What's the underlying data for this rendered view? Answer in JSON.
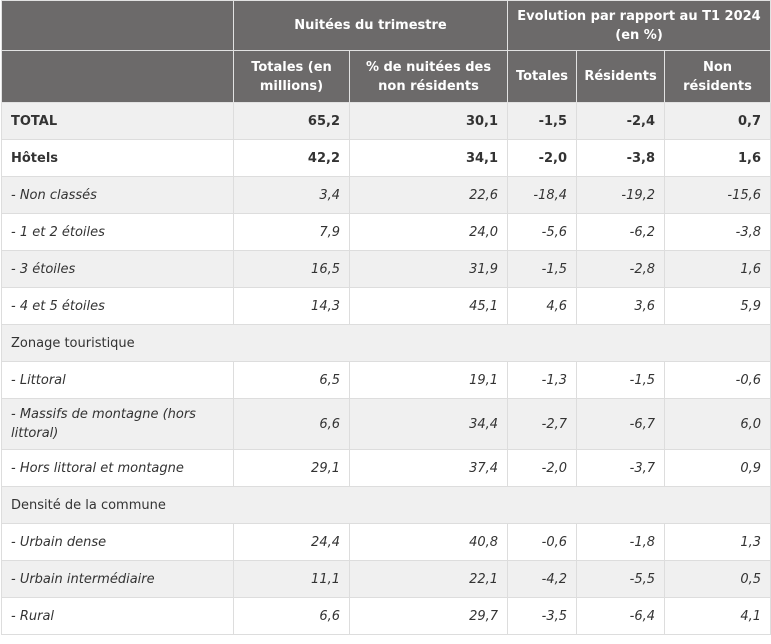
{
  "header": {
    "group1": "Nuitées du trimestre",
    "group2": "Evolution par rapport au T1 2024 (en %)",
    "cols": [
      "Totales (en millions)",
      "% de nuitées des non résidents",
      "Totales",
      "Résidents",
      "Non résidents"
    ]
  },
  "rows": [
    {
      "label": "TOTAL",
      "values": [
        "65,2",
        "30,1",
        "-1,5",
        "-2,4",
        "0,7"
      ],
      "style": "bold"
    },
    {
      "label": "Hôtels",
      "values": [
        "42,2",
        "34,1",
        "-2,0",
        "-3,8",
        "1,6"
      ],
      "style": "bold"
    },
    {
      "label": "- Non classés",
      "values": [
        "3,4",
        "22,6",
        "-18,4",
        "-19,2",
        "-15,6"
      ],
      "style": "italic"
    },
    {
      "label": "- 1 et 2 étoiles",
      "values": [
        "7,9",
        "24,0",
        "-5,6",
        "-6,2",
        "-3,8"
      ],
      "style": "italic"
    },
    {
      "label": "- 3 étoiles",
      "values": [
        "16,5",
        "31,9",
        "-1,5",
        "-2,8",
        "1,6"
      ],
      "style": "italic"
    },
    {
      "label": "- 4 et 5 étoiles",
      "values": [
        "14,3",
        "45,1",
        "4,6",
        "3,6",
        "5,9"
      ],
      "style": "italic"
    },
    {
      "label": "Zonage touristique",
      "style": "section"
    },
    {
      "label": "- Littoral",
      "values": [
        "6,5",
        "19,1",
        "-1,3",
        "-1,5",
        "-0,6"
      ],
      "style": "italic"
    },
    {
      "label": "- Massifs de montagne (hors littoral)",
      "values": [
        "6,6",
        "34,4",
        "-2,7",
        "-6,7",
        "6,0"
      ],
      "style": "italic"
    },
    {
      "label": "- Hors littoral et montagne",
      "values": [
        "29,1",
        "37,4",
        "-2,0",
        "-3,7",
        "0,9"
      ],
      "style": "italic"
    },
    {
      "label": "Densité de la commune",
      "style": "section"
    },
    {
      "label": "- Urbain dense",
      "values": [
        "24,4",
        "40,8",
        "-0,6",
        "-1,8",
        "1,3"
      ],
      "style": "italic"
    },
    {
      "label": "- Urbain intermédiaire",
      "values": [
        "11,1",
        "22,1",
        "-4,2",
        "-5,5",
        "0,5"
      ],
      "style": "italic"
    },
    {
      "label": "- Rural",
      "values": [
        "6,6",
        "29,7",
        "-3,5",
        "-6,4",
        "4,1"
      ],
      "style": "italic"
    }
  ]
}
